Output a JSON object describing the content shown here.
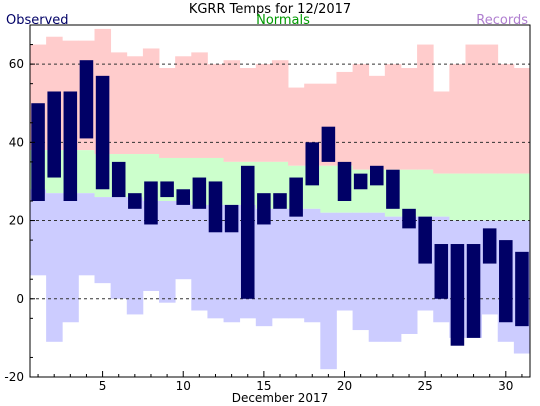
{
  "chart_data": {
    "type": "bar",
    "title": "KGRR Temps for 12/2017",
    "xlabel": "December 2017",
    "ylabel": "",
    "legend": {
      "observed": "Observed",
      "normals": "Normals",
      "records": "Records"
    },
    "colors": {
      "observed": "#000066",
      "normals_label": "#009900",
      "records_label": "#b07fd0",
      "record_high_band": "#ffcccc",
      "normal_band": "#ccffcc",
      "record_low_band": "#ccccff",
      "grid": "#333333"
    },
    "xlim": [
      1,
      31
    ],
    "ylim": [
      -20,
      70
    ],
    "y_ticks": [
      -20,
      0,
      20,
      40,
      60
    ],
    "x_ticks": [
      5,
      10,
      15,
      20,
      25,
      30
    ],
    "gridlines_y": [
      0,
      20,
      40,
      60
    ],
    "days": [
      1,
      2,
      3,
      4,
      5,
      6,
      7,
      8,
      9,
      10,
      11,
      12,
      13,
      14,
      15,
      16,
      17,
      18,
      19,
      20,
      21,
      22,
      23,
      24,
      25,
      26,
      27,
      28,
      29,
      30,
      31
    ],
    "observed_high": [
      50,
      53,
      53,
      61,
      57,
      35,
      27,
      30,
      30,
      28,
      31,
      30,
      24,
      34,
      27,
      27,
      31,
      40,
      44,
      35,
      32,
      34,
      33,
      23,
      21,
      14,
      14,
      14,
      18,
      15,
      12
    ],
    "observed_low": [
      25,
      31,
      25,
      41,
      28,
      26,
      23,
      19,
      26,
      24,
      23,
      17,
      17,
      0,
      19,
      23,
      21,
      29,
      35,
      25,
      28,
      29,
      23,
      18,
      9,
      0,
      -12,
      -10,
      9,
      -6,
      -7
    ],
    "normal_high": [
      38,
      38,
      38,
      38,
      37,
      37,
      37,
      37,
      36,
      36,
      36,
      36,
      35,
      35,
      35,
      35,
      34,
      34,
      34,
      34,
      33,
      33,
      33,
      33,
      33,
      32,
      32,
      32,
      32,
      32,
      32
    ],
    "normal_low": [
      28,
      27,
      27,
      27,
      26,
      26,
      26,
      25,
      25,
      25,
      24,
      24,
      24,
      24,
      23,
      23,
      23,
      23,
      22,
      22,
      22,
      22,
      21,
      21,
      21,
      21,
      20,
      20,
      20,
      20,
      20
    ],
    "record_high": [
      65,
      67,
      66,
      66,
      69,
      63,
      62,
      64,
      59,
      62,
      63,
      60,
      61,
      59,
      60,
      61,
      54,
      55,
      55,
      58,
      60,
      57,
      60,
      59,
      65,
      53,
      60,
      65,
      65,
      60,
      59
    ],
    "record_low": [
      6,
      -11,
      -6,
      6,
      4,
      0,
      -4,
      2,
      -1,
      5,
      -3,
      -5,
      -6,
      -5,
      -7,
      -5,
      -5,
      -6,
      -18,
      -3,
      -8,
      -11,
      -11,
      -9,
      -3,
      -6,
      -10,
      -10,
      -4,
      -11,
      -14
    ]
  }
}
